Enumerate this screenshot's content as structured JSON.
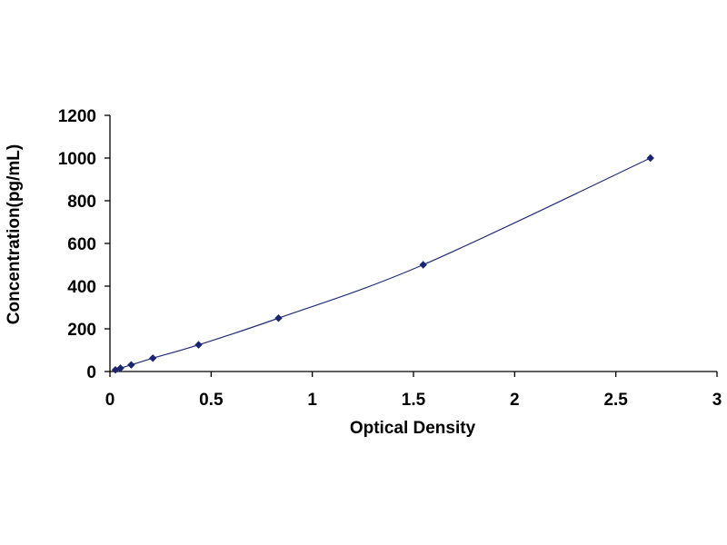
{
  "chart_data": {
    "type": "scatter",
    "xlabel": "Optical Density",
    "ylabel": "Concentration(pg/mL)",
    "xlim": [
      0,
      3
    ],
    "ylim": [
      0,
      1200
    ],
    "x_ticks": [
      0,
      0.5,
      1,
      1.5,
      2,
      2.5,
      3
    ],
    "x_tick_labels": [
      "0",
      "0.5",
      "1",
      "1.5",
      "2",
      "2.5",
      "3"
    ],
    "y_ticks": [
      0,
      200,
      400,
      600,
      800,
      1000,
      1200
    ],
    "y_tick_labels": [
      "0",
      "200",
      "400",
      "600",
      "800",
      "1000",
      "1200"
    ],
    "grid": false,
    "legend": false,
    "series": [
      {
        "marker": "diamond",
        "line": "smooth",
        "x": [
          0.027,
          0.052,
          0.105,
          0.212,
          0.438,
          0.833,
          1.548,
          2.671
        ],
        "y": [
          7.8,
          15.6,
          31.2,
          62.5,
          125,
          250,
          500,
          1000
        ]
      }
    ],
    "colors": {
      "series": "#1f2f7a",
      "marker": "#1a2470",
      "axis": "#000000"
    }
  }
}
